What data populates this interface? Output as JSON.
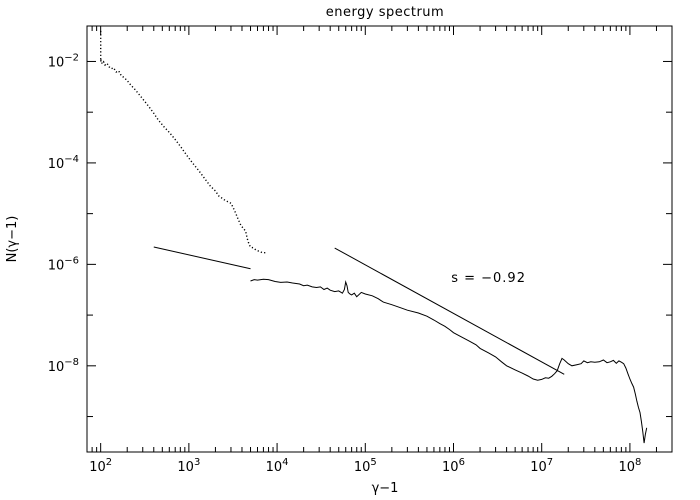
{
  "chart_data": {
    "type": "line",
    "title": "energy spectrum",
    "xlabel": "γ−1",
    "ylabel": "N(γ−1)",
    "x_scale": "log",
    "y_scale": "log",
    "xlim": [
      70,
      300000000
    ],
    "ylim": [
      2e-10,
      0.05
    ],
    "grid": false,
    "x_ticks": [
      {
        "value": 100,
        "base": "10",
        "exp": "2"
      },
      {
        "value": 1000,
        "base": "10",
        "exp": "3"
      },
      {
        "value": 10000,
        "base": "10",
        "exp": "4"
      },
      {
        "value": 100000,
        "base": "10",
        "exp": "5"
      },
      {
        "value": 1000000,
        "base": "10",
        "exp": "6"
      },
      {
        "value": 10000000,
        "base": "10",
        "exp": "7"
      },
      {
        "value": 100000000,
        "base": "10",
        "exp": "8"
      }
    ],
    "y_ticks": [
      {
        "value": 1e-08,
        "base": "10",
        "exp": "−8"
      },
      {
        "value": 1e-06,
        "base": "10",
        "exp": "−6"
      },
      {
        "value": 0.0001,
        "base": "10",
        "exp": "−4"
      },
      {
        "value": 0.01,
        "base": "10",
        "exp": "−2"
      }
    ],
    "series": [
      {
        "style": "dotted",
        "x": [
          100,
          100,
          101,
          104,
          108,
          112,
          118,
          125,
          132,
          140,
          150,
          160,
          172,
          185,
          200,
          220,
          245,
          275,
          310,
          350,
          400,
          450,
          520,
          600,
          700,
          820,
          950,
          1100,
          1300,
          1500,
          1750,
          2000,
          2200,
          2400,
          2600,
          2800,
          3000,
          3300,
          3600,
          3900,
          4200,
          4400,
          4600,
          4800,
          5000,
          5400,
          5800,
          6300,
          6800,
          7500
        ],
        "y": [
          0.04,
          0.01,
          0.0105,
          0.009,
          0.0098,
          0.0085,
          0.0092,
          0.0078,
          0.0072,
          0.0075,
          0.0062,
          0.0065,
          0.0052,
          0.0048,
          0.0042,
          0.0034,
          0.0028,
          0.0022,
          0.0017,
          0.0013,
          0.00095,
          0.0007,
          0.00052,
          0.0004,
          0.00029,
          0.0002,
          0.00014,
          0.0001,
          7e-05,
          5e-05,
          3.5e-05,
          2.8e-05,
          2.2e-05,
          2e-05,
          1.8e-05,
          1.7e-05,
          1.6e-05,
          1.15e-05,
          8e-06,
          5.8e-06,
          5e-06,
          4.5e-06,
          3.2e-06,
          2.5e-06,
          2.2e-06,
          2.1e-06,
          1.9e-06,
          1.8e-06,
          1.7e-06,
          1.7e-06
        ]
      },
      {
        "style": "solid",
        "x": [
          5000,
          5500,
          6000,
          7000,
          8000,
          9500,
          11000,
          13000,
          15000,
          18000,
          20000,
          22000,
          25000,
          28000,
          31000,
          34000,
          37000,
          40000,
          45000,
          50000,
          55000,
          58000,
          60000,
          62000,
          64000,
          67000,
          70000,
          75000,
          80000,
          90000,
          100000,
          120000,
          140000,
          160000,
          200000,
          250000,
          300000,
          400000,
          500000,
          600000,
          700000,
          800000,
          900000,
          1000000,
          1200000,
          1500000,
          1800000,
          2000000,
          2500000,
          3000000,
          3500000,
          4000000,
          5000000,
          6000000,
          7000000,
          8000000,
          9000000,
          10000000,
          11000000,
          12000000,
          13000000,
          14000000,
          15000000,
          16000000,
          17000000,
          18000000,
          20000000,
          22000000,
          25000000,
          28000000,
          30000000,
          33000000,
          36000000,
          40000000,
          45000000,
          50000000,
          55000000,
          60000000,
          65000000,
          70000000,
          75000000,
          80000000,
          85000000,
          90000000,
          95000000,
          100000000,
          105000000,
          110000000,
          115000000,
          120000000,
          125000000,
          130000000,
          135000000,
          140000000,
          145000000,
          150000000,
          155000000
        ],
        "y": [
          4.7e-07,
          5e-07,
          4.9e-07,
          5.1e-07,
          5e-07,
          4.6e-07,
          4.4e-07,
          4.5e-07,
          4.3e-07,
          4.1e-07,
          3.8e-07,
          3.9e-07,
          3.6e-07,
          3.5e-07,
          3.6e-07,
          3.2e-07,
          3.4e-07,
          3.1e-07,
          2.9e-07,
          3e-07,
          2.7e-07,
          3.2e-07,
          4.5e-07,
          3.8e-07,
          2.8e-07,
          2.6e-07,
          2.5e-07,
          2.7e-07,
          2.3e-07,
          2.8e-07,
          2.6e-07,
          2.4e-07,
          2.1e-07,
          1.8e-07,
          1.6e-07,
          1.4e-07,
          1.25e-07,
          1.1e-07,
          9.5e-08,
          8e-08,
          6.8e-08,
          6e-08,
          5.2e-08,
          4.5e-08,
          3.8e-08,
          3.1e-08,
          2.6e-08,
          2.2e-08,
          1.8e-08,
          1.5e-08,
          1.2e-08,
          1e-08,
          8.3e-09,
          7.2e-09,
          6.3e-09,
          5.5e-09,
          5.2e-09,
          5.4e-09,
          5.8e-09,
          5.7e-09,
          6.2e-09,
          7e-09,
          8e-09,
          1.1e-08,
          1.4e-08,
          1.3e-08,
          1.1e-08,
          1e-08,
          1.05e-08,
          1.1e-08,
          1.25e-08,
          1.15e-08,
          1.2e-08,
          1.18e-08,
          1.2e-08,
          1.3e-08,
          1.15e-08,
          1.2e-08,
          1.28e-08,
          1.12e-08,
          1.25e-08,
          1.18e-08,
          1.1e-08,
          9e-09,
          7e-09,
          5.5e-09,
          4.5e-09,
          3.8e-09,
          2.8e-09,
          2e-09,
          1.5e-09,
          1.2e-09,
          8e-10,
          5e-10,
          3e-10,
          4.5e-10,
          6e-10
        ]
      }
    ],
    "fit_lines": [
      {
        "x": [
          400,
          5000
        ],
        "y": [
          2.2e-06,
          8.2e-07
        ]
      },
      {
        "x": [
          45000,
          18000000
        ],
        "y": [
          2.1e-06,
          6.8e-09
        ]
      }
    ],
    "annotations": [
      {
        "text": "s = −0.92",
        "x": 2500000,
        "y": 4.5e-07
      }
    ]
  }
}
